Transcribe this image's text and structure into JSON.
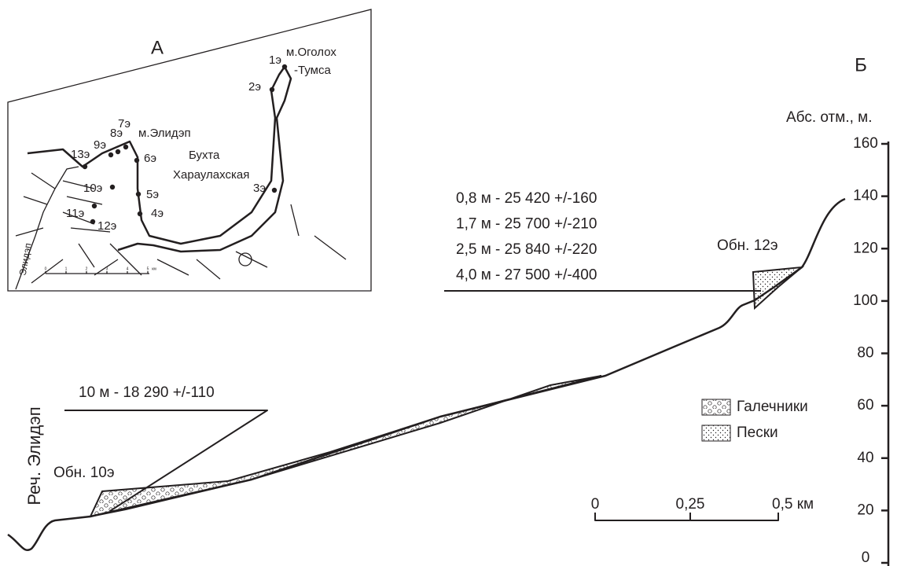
{
  "panel_a": {
    "label": "А",
    "cape_east": [
      "м.Оголох",
      "-Тумса"
    ],
    "cape_west": "м.Элидэп",
    "bay": [
      "Бухта",
      "Хараулахская"
    ],
    "river": "Элидэп",
    "points": [
      "1э",
      "2э",
      "3э",
      "4э",
      "5э",
      "6э",
      "7э",
      "8э",
      "9э",
      "10э",
      "11э",
      "12э",
      "13э"
    ],
    "scale": [
      "0",
      "1",
      "2",
      "3",
      "4",
      "5",
      "км"
    ]
  },
  "panel_b": {
    "label": "Б",
    "axis": {
      "title": "Абс. отм., м.",
      "ylim": [
        0,
        160
      ],
      "yticks": [
        0,
        20,
        40,
        60,
        80,
        100,
        120,
        140,
        160
      ]
    },
    "outcrop_12": {
      "name": "Обн. 12э",
      "dates": [
        "0,8 м - 25 420 +/-160",
        "1,7 м - 25 700 +/-210",
        "2,5 м - 25 840 +/-220",
        "4,0 м - 27 500 +/-400"
      ]
    },
    "outcrop_10": {
      "name": "Обн. 10э",
      "dates": [
        "10  м - 18 290 +/-110"
      ]
    },
    "river": "Реч. Элидэп",
    "legend": [
      "Галечники",
      "Пески"
    ],
    "scale": [
      "0",
      "0,25",
      "0,5 км"
    ]
  }
}
